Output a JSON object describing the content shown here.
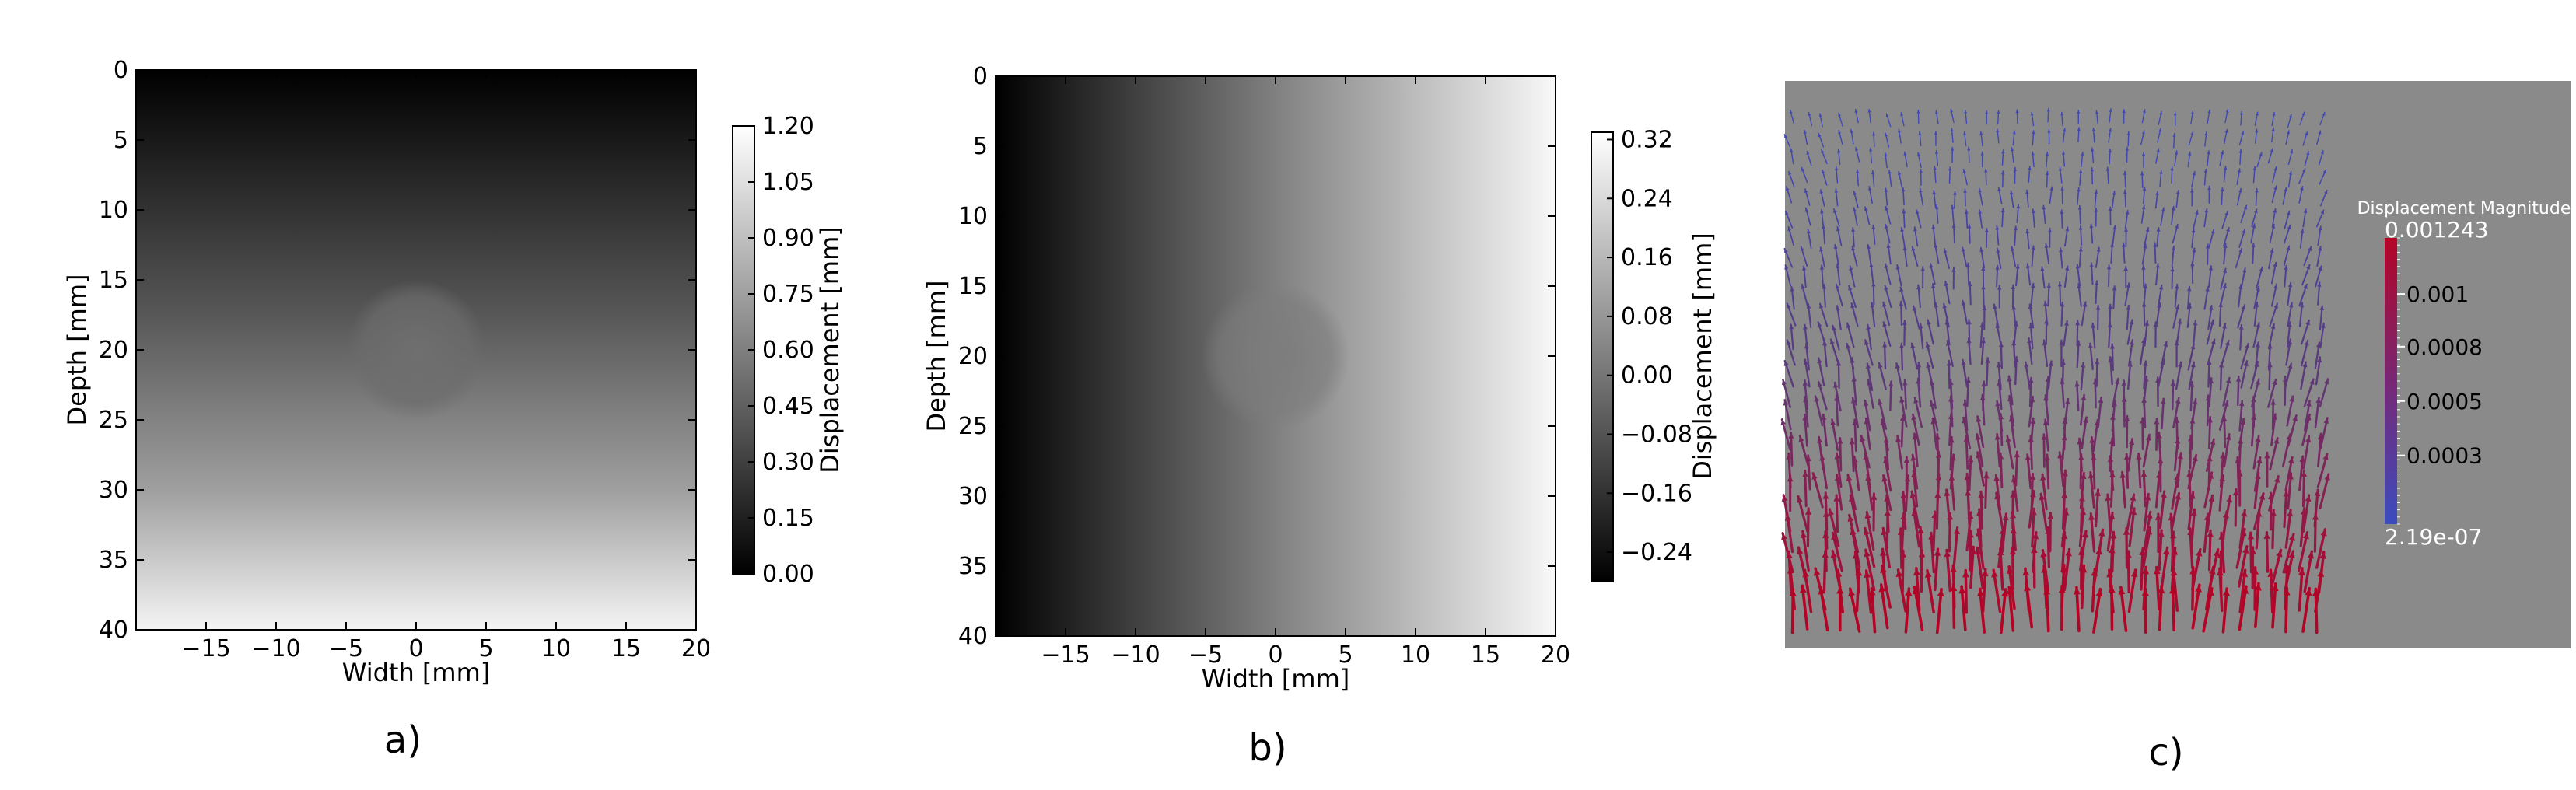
{
  "chart_data": [
    {
      "type": "heatmap",
      "panel_label": "a)",
      "xlabel": "Width [mm]",
      "ylabel": "Depth [mm]",
      "xlim": [
        -20,
        20
      ],
      "ylim": [
        40,
        0
      ],
      "x_ticks": [
        -15,
        -10,
        -5,
        0,
        5,
        10,
        15,
        20
      ],
      "y_ticks": [
        0,
        5,
        10,
        15,
        20,
        25,
        30,
        35,
        40
      ],
      "colormap": "gray",
      "field": "vertical gradient, dark at top, light at bottom, with a round inclusion centred near (0, 20)",
      "colorbar": {
        "label": "Displacement [mm]",
        "range": [
          0.0,
          1.2
        ],
        "ticks": [
          "0.00",
          "0.15",
          "0.30",
          "0.45",
          "0.60",
          "0.75",
          "0.90",
          "1.05",
          "1.20"
        ]
      },
      "inclusion": {
        "center": [
          0,
          20
        ],
        "radius_mm": 5
      }
    },
    {
      "type": "heatmap",
      "panel_label": "b)",
      "xlabel": "Width [mm]",
      "ylabel": "Depth [mm]",
      "xlim": [
        -20,
        20
      ],
      "ylim": [
        40,
        0
      ],
      "x_ticks": [
        -15,
        -10,
        -5,
        0,
        5,
        10,
        15,
        20
      ],
      "y_ticks": [
        0,
        5,
        10,
        15,
        20,
        25,
        30,
        35,
        40
      ],
      "colormap": "gray",
      "field": "horizontal gradient, dark at left, light at right, with a round inclusion centred near (0, 20)",
      "colorbar": {
        "label": "Displacement [mm]",
        "range": [
          -0.28,
          0.33
        ],
        "ticks": [
          "−0.24",
          "−0.16",
          "−0.08",
          "0.00",
          "0.08",
          "0.16",
          "0.24",
          "0.32"
        ],
        "tick_values": [
          -0.24,
          -0.16,
          -0.08,
          0.0,
          0.08,
          0.16,
          0.24,
          0.32
        ]
      },
      "inclusion": {
        "center": [
          0,
          20
        ],
        "radius_mm": 5
      }
    },
    {
      "type": "vector_field",
      "panel_label": "c)",
      "background": "#8a8a8a",
      "colorbar": {
        "title": "Displacement Magnitude",
        "max_label": "0.001243",
        "min_label": "2.19e-07",
        "ticks": [
          "0.001",
          "0.0008",
          "0.0005",
          "0.0003"
        ],
        "color_low": "#3b4cc0",
        "color_high": "#b40426"
      },
      "field": "arrows pointing upward, magnitude increasing with depth"
    }
  ]
}
